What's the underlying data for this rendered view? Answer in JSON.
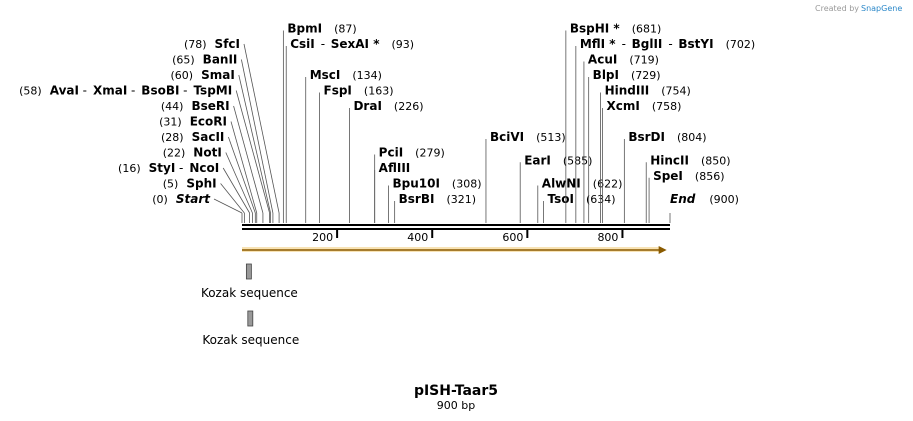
{
  "credit": {
    "text": "Created by",
    "brand": "SnapGene"
  },
  "title": "pISH-Taar5",
  "subtitle": "900 bp",
  "sequence_length": 900,
  "ticks": [
    200,
    400,
    600,
    800
  ],
  "sites": [
    {
      "names": [
        "SphI"
      ],
      "pos": 5,
      "pos_label": "(5)",
      "side": "left",
      "row": 1
    },
    {
      "names": [
        "StyI",
        "NcoI"
      ],
      "pos": 16,
      "pos_label": "(16)",
      "side": "left",
      "row": 2
    },
    {
      "names": [
        "NotI"
      ],
      "pos": 22,
      "pos_label": "(22)",
      "side": "left",
      "row": 3
    },
    {
      "names": [
        "SacII"
      ],
      "pos": 28,
      "pos_label": "(28)",
      "side": "left",
      "row": 4
    },
    {
      "names": [
        "EcoRI"
      ],
      "pos": 31,
      "pos_label": "(31)",
      "side": "left",
      "row": 5
    },
    {
      "names": [
        "BseRI"
      ],
      "pos": 44,
      "pos_label": "(44)",
      "side": "left",
      "row": 6
    },
    {
      "names": [
        "AvaI",
        "XmaI",
        "BsoBI",
        "TspMI"
      ],
      "pos": 58,
      "pos_label": "(58)",
      "side": "left",
      "row": 7
    },
    {
      "names": [
        "SmaI"
      ],
      "pos": 60,
      "pos_label": "(60)",
      "side": "left",
      "row": 8
    },
    {
      "names": [
        "BanII"
      ],
      "pos": 65,
      "pos_label": "(65)",
      "side": "left",
      "row": 9
    },
    {
      "names": [
        "SfcI"
      ],
      "pos": 78,
      "pos_label": "(78)",
      "side": "left",
      "row": 10
    },
    {
      "names": [
        "BpmI"
      ],
      "pos": 87,
      "pos_label": "(87)",
      "side": "right",
      "row": 11
    },
    {
      "names": [
        "CsiI",
        "SexAI *"
      ],
      "pos": 93,
      "pos_label": "(93)",
      "side": "right",
      "row": 10
    },
    {
      "names": [
        "MscI"
      ],
      "pos": 134,
      "pos_label": "(134)",
      "side": "right",
      "row": 8
    },
    {
      "names": [
        "FspI"
      ],
      "pos": 163,
      "pos_label": "(163)",
      "side": "right",
      "row": 7
    },
    {
      "names": [
        "DraI"
      ],
      "pos": 226,
      "pos_label": "(226)",
      "side": "right",
      "row": 6
    },
    {
      "names": [
        "PciI"
      ],
      "pos": 279,
      "pos_label": "(279)",
      "side": "right",
      "row": 3
    },
    {
      "names": [
        "AflIII"
      ],
      "pos": 279,
      "pos_label": "",
      "side": "right",
      "row": 2
    },
    {
      "names": [
        "Bpu10I"
      ],
      "pos": 308,
      "pos_label": "(308)",
      "side": "right",
      "row": 1
    },
    {
      "names": [
        "BsrBI"
      ],
      "pos": 321,
      "pos_label": "(321)",
      "side": "right",
      "row": 0
    },
    {
      "names": [
        "BciVI"
      ],
      "pos": 513,
      "pos_label": "(513)",
      "side": "right",
      "row": 4
    },
    {
      "names": [
        "EarI"
      ],
      "pos": 585,
      "pos_label": "(585)",
      "side": "right",
      "row": 2.5
    },
    {
      "names": [
        "AlwNI"
      ],
      "pos": 622,
      "pos_label": "(622)",
      "side": "right",
      "row": 1
    },
    {
      "names": [
        "TsoI"
      ],
      "pos": 634,
      "pos_label": "(634)",
      "side": "right",
      "row": 0
    },
    {
      "names": [
        "BspHI *"
      ],
      "pos": 681,
      "pos_label": "(681)",
      "side": "right",
      "row": 11
    },
    {
      "names": [
        "MflI *",
        "BglII",
        "BstYI"
      ],
      "pos": 702,
      "pos_label": "(702)",
      "side": "right",
      "row": 10
    },
    {
      "names": [
        "AcuI"
      ],
      "pos": 719,
      "pos_label": "(719)",
      "side": "right",
      "row": 9
    },
    {
      "names": [
        "BlpI"
      ],
      "pos": 729,
      "pos_label": "(729)",
      "side": "right",
      "row": 8
    },
    {
      "names": [
        "HindIII"
      ],
      "pos": 754,
      "pos_label": "(754)",
      "side": "right",
      "row": 7
    },
    {
      "names": [
        "XcmI"
      ],
      "pos": 758,
      "pos_label": "(758)",
      "side": "right",
      "row": 6
    },
    {
      "names": [
        "BsrDI"
      ],
      "pos": 804,
      "pos_label": "(804)",
      "side": "right",
      "row": 4
    },
    {
      "names": [
        "HincII"
      ],
      "pos": 850,
      "pos_label": "(850)",
      "side": "right",
      "row": 2.5
    },
    {
      "names": [
        "SpeI"
      ],
      "pos": 856,
      "pos_label": "(856)",
      "side": "right",
      "row": 1.5
    }
  ],
  "ends": [
    {
      "name": "Start",
      "pos": 0,
      "pos_label": "(0)",
      "side": "left"
    },
    {
      "name": "End",
      "pos": 900,
      "pos_label": "(900)",
      "side": "right"
    }
  ],
  "features": [
    {
      "name": "Kozak sequence",
      "start": 5,
      "end": 15
    },
    {
      "name": "Kozak sequence",
      "start": 8,
      "end": 18
    }
  ],
  "arrow": {
    "start": 0,
    "end": 893,
    "color": "#f5a623"
  }
}
